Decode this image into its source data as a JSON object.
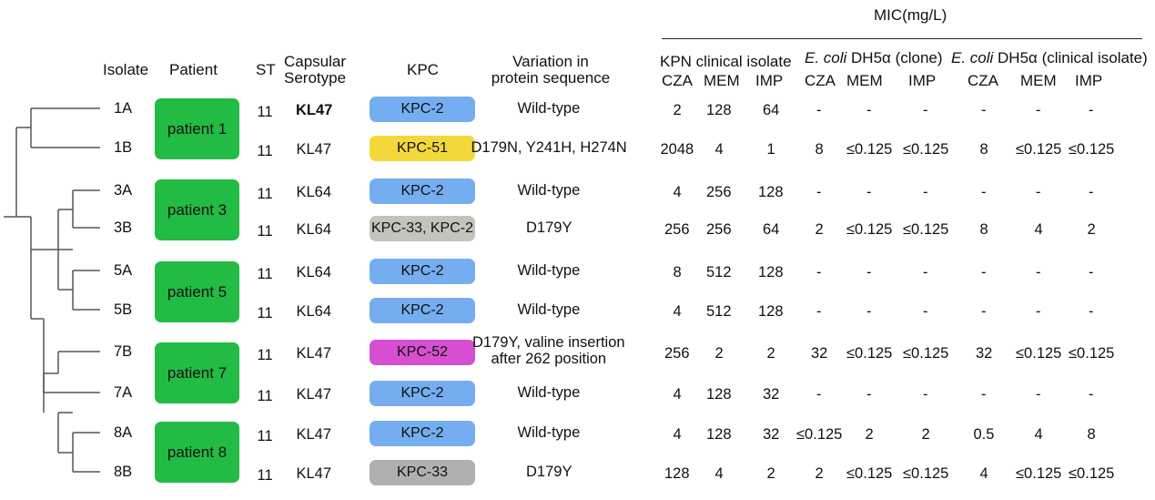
{
  "header": {
    "mic_group": "MIC(mg/L)",
    "isolate": "Isolate",
    "patient": "Patient",
    "st": "ST",
    "capsular_1": "Capsular",
    "capsular_2": "Serotype",
    "kpc": "KPC",
    "variation_1": "Variation in",
    "variation_2": "protein sequence",
    "kpn_group": "KPN clinical isolate",
    "ecoli_clone_italic": "E. coli",
    "ecoli_clone_rest": " DH5α (clone)",
    "ecoli_clin_italic": "E. coli",
    "ecoli_clin_rest": " DH5α (clinical isolate)",
    "cza": "CZA",
    "mem": "MEM",
    "imp": "IMP"
  },
  "patients": [
    "patient 1",
    "patient 3",
    "patient 5",
    "patient 7",
    "patient 8"
  ],
  "rows": [
    {
      "isolate": "1A",
      "st": "11",
      "serotype": "KL47",
      "kpc": "KPC-2",
      "kpc_color": "#74aef0",
      "variation": "Wild-type",
      "kpn": [
        "2",
        "128",
        "64"
      ],
      "clone": [
        "-",
        "-",
        "-"
      ],
      "clin": [
        "-",
        "-",
        "-"
      ]
    },
    {
      "isolate": "1B",
      "st": "11",
      "serotype": "KL47",
      "kpc": "KPC-51",
      "kpc_color": "#f2d83a",
      "variation": "D179N, Y241H, H274N",
      "kpn": [
        "2048",
        "4",
        "1"
      ],
      "clone": [
        "8",
        "≤0.125",
        "≤0.125"
      ],
      "clin": [
        "8",
        "≤0.125",
        "≤0.125"
      ]
    },
    {
      "isolate": "3A",
      "st": "11",
      "serotype": "KL64",
      "kpc": "KPC-2",
      "kpc_color": "#74aef0",
      "variation": "Wild-type",
      "kpn": [
        "4",
        "256",
        "128"
      ],
      "clone": [
        "-",
        "-",
        "-"
      ],
      "clin": [
        "-",
        "-",
        "-"
      ]
    },
    {
      "isolate": "3B",
      "st": "11",
      "serotype": "KL64",
      "kpc": "KPC-33, KPC-2",
      "kpc_color": "#c4c4bc",
      "variation": "D179Y",
      "kpn": [
        "256",
        "256",
        "64"
      ],
      "clone": [
        "2",
        "≤0.125",
        "≤0.125"
      ],
      "clin": [
        "8",
        "4",
        "2"
      ]
    },
    {
      "isolate": "5A",
      "st": "11",
      "serotype": "KL64",
      "kpc": "KPC-2",
      "kpc_color": "#74aef0",
      "variation": "Wild-type",
      "kpn": [
        "8",
        "512",
        "128"
      ],
      "clone": [
        "-",
        "-",
        "-"
      ],
      "clin": [
        "-",
        "-",
        "-"
      ]
    },
    {
      "isolate": "5B",
      "st": "11",
      "serotype": "KL64",
      "kpc": "KPC-2",
      "kpc_color": "#74aef0",
      "variation": "Wild-type",
      "kpn": [
        "4",
        "512",
        "128"
      ],
      "clone": [
        "-",
        "-",
        "-"
      ],
      "clin": [
        "-",
        "-",
        "-"
      ]
    },
    {
      "isolate": "7B",
      "st": "11",
      "serotype": "KL47",
      "kpc": "KPC-52",
      "kpc_color": "#d64fd0",
      "variation": "D179Y, valine insertion",
      "variation_2": "after 262 position",
      "kpn": [
        "256",
        "2",
        "2"
      ],
      "clone": [
        "32",
        "≤0.125",
        "≤0.125"
      ],
      "clin": [
        "32",
        "≤0.125",
        "≤0.125"
      ]
    },
    {
      "isolate": "7A",
      "st": "11",
      "serotype": "KL47",
      "kpc": "KPC-2",
      "kpc_color": "#74aef0",
      "variation": "Wild-type",
      "kpn": [
        "4",
        "128",
        "32"
      ],
      "clone": [
        "-",
        "-",
        "-"
      ],
      "clin": [
        "-",
        "-",
        "-"
      ]
    },
    {
      "isolate": "8A",
      "st": "11",
      "serotype": "KL47",
      "kpc": "KPC-2",
      "kpc_color": "#74aef0",
      "variation": "Wild-type",
      "kpn": [
        "4",
        "128",
        "32"
      ],
      "clone": [
        "≤0.125",
        "2",
        "2"
      ],
      "clin": [
        "0.5",
        "4",
        "8"
      ]
    },
    {
      "isolate": "8B",
      "st": "11",
      "serotype": "KL47",
      "kpc": "KPC-33",
      "kpc_color": "#b0b0b0",
      "variation": "D179Y",
      "kpn": [
        "128",
        "4",
        "2"
      ],
      "clone": [
        "2",
        "≤0.125",
        "≤0.125"
      ],
      "clin": [
        "4",
        "≤0.125",
        "≤0.125"
      ]
    }
  ],
  "colors": {
    "patient_fill": "#22bb44",
    "tree_line": "#555555"
  }
}
